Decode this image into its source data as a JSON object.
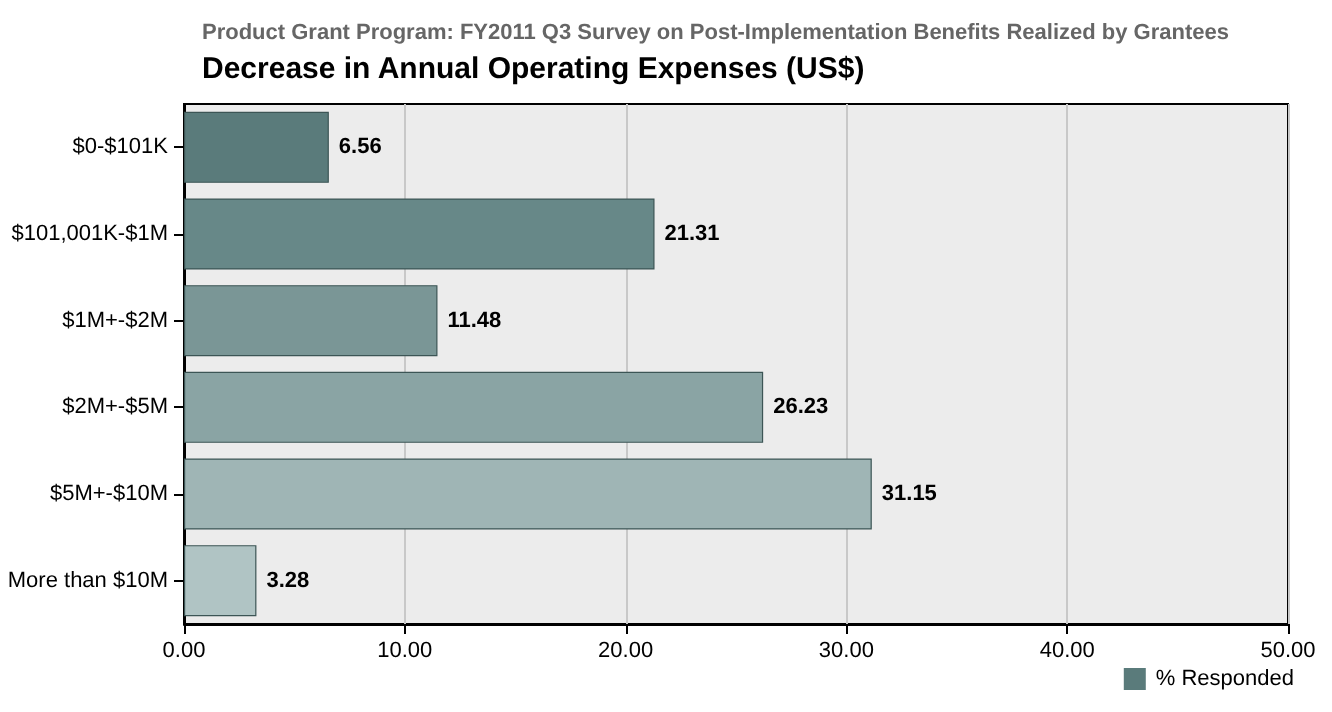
{
  "chart_data": {
    "type": "bar",
    "orientation": "horizontal",
    "title": "Decrease in Annual Operating Expenses (US$)",
    "subtitle": "Product Grant Program: FY2011 Q3 Survey on Post-Implementation Benefits Realized by Grantees",
    "categories": [
      "$0-$101K",
      "$101,001K-$1M",
      "$1M+-$2M",
      "$2M+-$5M",
      "$5M+-$10M",
      "More than $10M"
    ],
    "series": [
      {
        "name": "% Responded",
        "color": "#5a7b7b",
        "colors": [
          "#5a7b7b",
          "#678888",
          "#7a9696",
          "#8aa4a4",
          "#9fb5b5",
          "#b0c4c4"
        ],
        "values": [
          6.56,
          21.31,
          11.48,
          26.23,
          31.15,
          3.28
        ]
      }
    ],
    "xlim": [
      0,
      50
    ],
    "xticks": [
      {
        "value": 0,
        "label": "0.00"
      },
      {
        "value": 10,
        "label": "10.00"
      },
      {
        "value": 20,
        "label": "20.00"
      },
      {
        "value": 30,
        "label": "30.00"
      },
      {
        "value": 40,
        "label": "40.00"
      },
      {
        "value": 50,
        "label": "50.00"
      }
    ],
    "grid": "x",
    "legend": "bottom right",
    "data_labels": true
  }
}
